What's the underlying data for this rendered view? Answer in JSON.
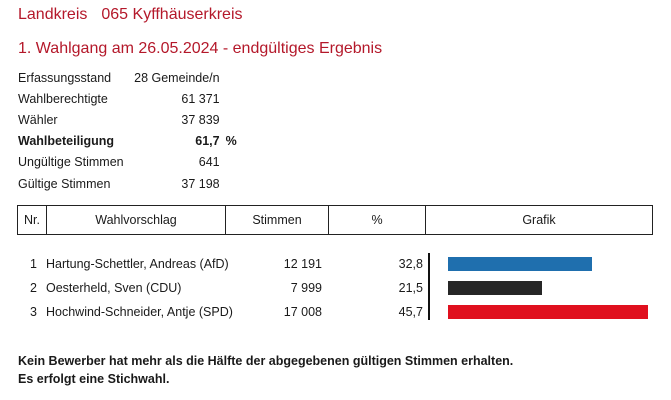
{
  "header": {
    "area_label": "Landkreis",
    "area_name": "065 Kyffhäuserkreis",
    "election_title": "1. Wahlgang am 26.05.2024 - endgültiges Ergebnis"
  },
  "stats": [
    {
      "label": "Erfassungsstand",
      "value": "28 Gemeinde/n",
      "unit": "",
      "bold": false
    },
    {
      "label": "Wahlberechtigte",
      "value": "61 371",
      "unit": "",
      "bold": false
    },
    {
      "label": "Wähler",
      "value": "37 839",
      "unit": "",
      "bold": false
    },
    {
      "label": "Wahlbeteiligung",
      "value": "61,7",
      "unit": "%",
      "bold": true
    },
    {
      "label": "Ungültige Stimmen",
      "value": "641",
      "unit": "",
      "bold": false
    },
    {
      "label": "Gültige Stimmen",
      "value": "37 198",
      "unit": "",
      "bold": false
    }
  ],
  "table": {
    "headers": [
      "Nr.",
      "Wahlvorschlag",
      "Stimmen",
      "%",
      "Grafik"
    ],
    "rows": [
      {
        "nr": "1",
        "name": "Hartung-Schettler, Andreas (AfD)",
        "votes": "12 191",
        "pct": "32,8",
        "share": 32.8,
        "color": "#1f6fae"
      },
      {
        "nr": "2",
        "name": "Oesterheld, Sven (CDU)",
        "votes": "7 999",
        "pct": "21,5",
        "share": 21.5,
        "color": "#262626"
      },
      {
        "nr": "3",
        "name": "Hochwind-Schneider, Antje (SPD)",
        "votes": "17 008",
        "pct": "45,7",
        "share": 45.7,
        "color": "#e0101e"
      }
    ]
  },
  "note": {
    "line1": "Kein Bewerber hat mehr als die Hälfte der abgegebenen gültigen Stimmen erhalten.",
    "line2": "Es erfolgt eine Stichwahl."
  }
}
